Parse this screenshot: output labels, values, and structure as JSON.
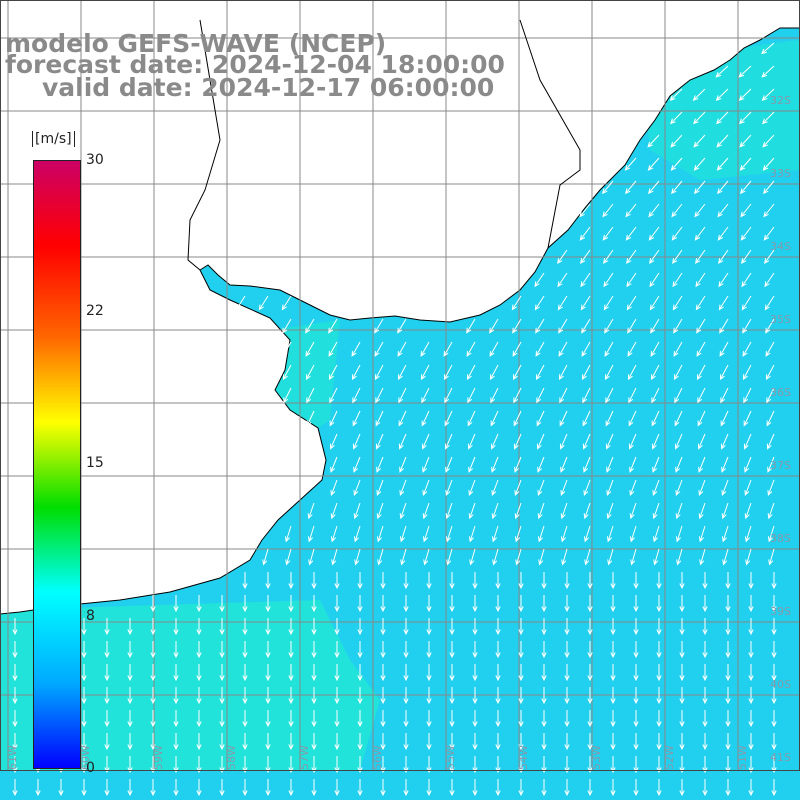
{
  "header": {
    "model_line": "modelo GEFS-WAVE (NCEP)",
    "forecast_line": "forecast date: 2024-12-04 18:00:00",
    "valid_line": "valid date: 2024-12-17 06:00:00"
  },
  "colorbar": {
    "unit": "[m/s]",
    "ticks": [
      "30",
      "22",
      "15",
      "8",
      "0"
    ],
    "tick_values": [
      30,
      22,
      15,
      8,
      0
    ],
    "range": [
      0,
      30
    ],
    "stops": [
      "#0000ff",
      "#00aaff",
      "#00ffff",
      "#00dd00",
      "#ffff00",
      "#ff6600",
      "#ff0000",
      "#cc0066"
    ]
  },
  "map": {
    "lat_labels": [
      "32S",
      "33S",
      "34S",
      "35S",
      "36S",
      "37S",
      "38S",
      "39S",
      "40S",
      "41S"
    ],
    "lon_labels": [
      "61W",
      "60W",
      "59W",
      "58W",
      "57W",
      "56W",
      "55W",
      "54W",
      "53W",
      "52W",
      "51W"
    ],
    "land_color": "#ffffff",
    "sea_color_calm": "#22e6d6",
    "sea_color_main": "#20d0ee",
    "arrow_color": "#ffffff",
    "grid_color": "#888888",
    "wind_direction": "from northeast / north"
  }
}
